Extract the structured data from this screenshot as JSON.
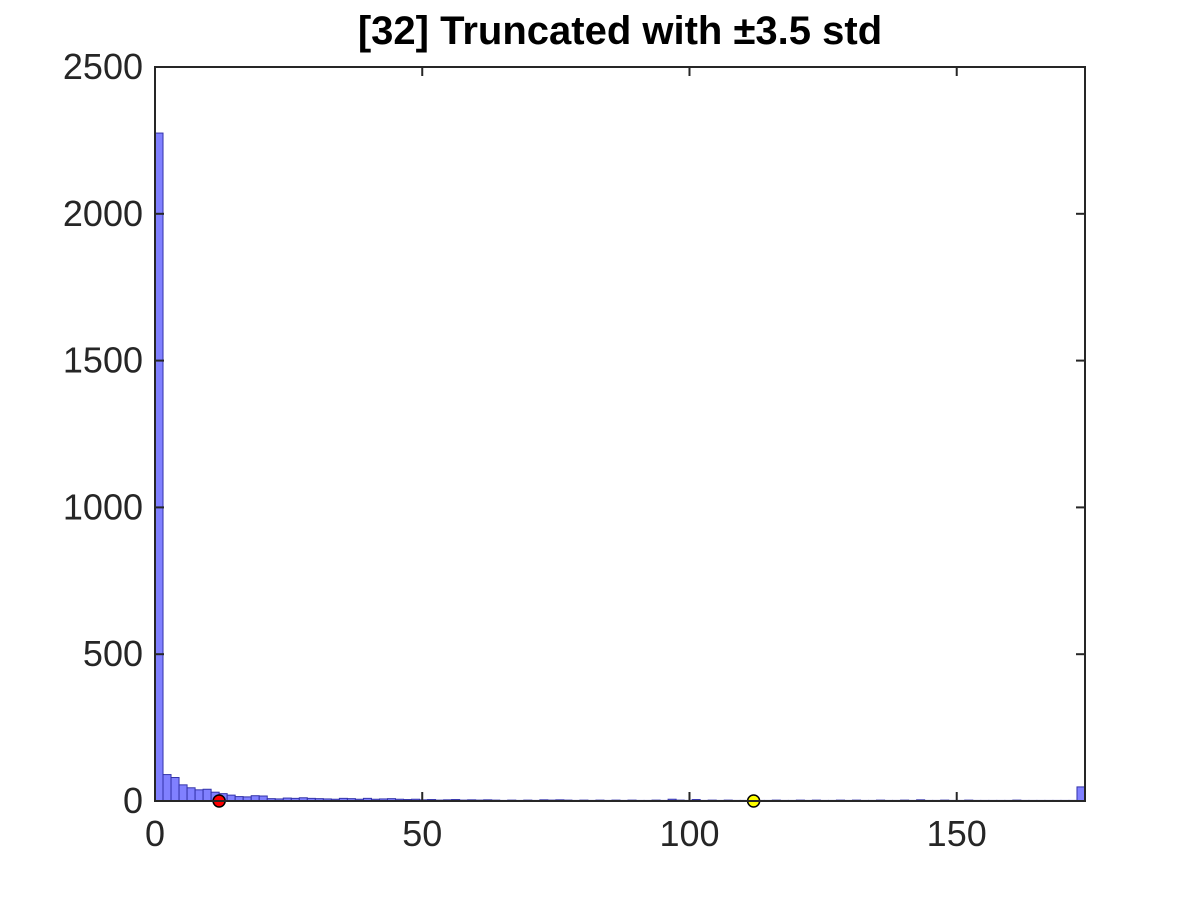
{
  "chart_data": {
    "type": "bar",
    "title": "[32] Truncated with ±3.5 std",
    "xlabel": "",
    "ylabel": "",
    "xlim": [
      0,
      174
    ],
    "ylim": [
      0,
      2500
    ],
    "xticks": [
      0,
      50,
      100,
      150
    ],
    "yticks": [
      0,
      500,
      1000,
      1500,
      2000,
      2500
    ],
    "bin_width": 1.5,
    "bar_color": "#8080ff",
    "bar_edge_color": "#3333aa",
    "bins": [
      {
        "x": 0,
        "count": 2275
      },
      {
        "x": 1.5,
        "count": 90
      },
      {
        "x": 3,
        "count": 80
      },
      {
        "x": 4.5,
        "count": 55
      },
      {
        "x": 6,
        "count": 45
      },
      {
        "x": 7.5,
        "count": 38
      },
      {
        "x": 9,
        "count": 40
      },
      {
        "x": 10.5,
        "count": 30
      },
      {
        "x": 12,
        "count": 25
      },
      {
        "x": 13.5,
        "count": 20
      },
      {
        "x": 15,
        "count": 15
      },
      {
        "x": 16.5,
        "count": 14
      },
      {
        "x": 18,
        "count": 18
      },
      {
        "x": 19.5,
        "count": 17
      },
      {
        "x": 21,
        "count": 8
      },
      {
        "x": 22.5,
        "count": 7
      },
      {
        "x": 24,
        "count": 10
      },
      {
        "x": 25.5,
        "count": 9
      },
      {
        "x": 27,
        "count": 11
      },
      {
        "x": 28.5,
        "count": 9
      },
      {
        "x": 30,
        "count": 8
      },
      {
        "x": 31.5,
        "count": 7
      },
      {
        "x": 33,
        "count": 6
      },
      {
        "x": 34.5,
        "count": 9
      },
      {
        "x": 36,
        "count": 8
      },
      {
        "x": 37.5,
        "count": 6
      },
      {
        "x": 39,
        "count": 9
      },
      {
        "x": 40.5,
        "count": 6
      },
      {
        "x": 42,
        "count": 7
      },
      {
        "x": 43.5,
        "count": 8
      },
      {
        "x": 45,
        "count": 6
      },
      {
        "x": 46.5,
        "count": 5
      },
      {
        "x": 48,
        "count": 6
      },
      {
        "x": 49.5,
        "count": 4
      },
      {
        "x": 51,
        "count": 5
      },
      {
        "x": 52.5,
        "count": 3
      },
      {
        "x": 54,
        "count": 4
      },
      {
        "x": 55.5,
        "count": 5
      },
      {
        "x": 57,
        "count": 3
      },
      {
        "x": 58.5,
        "count": 4
      },
      {
        "x": 60,
        "count": 3
      },
      {
        "x": 61.5,
        "count": 4
      },
      {
        "x": 63,
        "count": 3
      },
      {
        "x": 64.5,
        "count": 2
      },
      {
        "x": 66,
        "count": 3
      },
      {
        "x": 67.5,
        "count": 2
      },
      {
        "x": 69,
        "count": 3
      },
      {
        "x": 70.5,
        "count": 2
      },
      {
        "x": 72,
        "count": 4
      },
      {
        "x": 73.5,
        "count": 3
      },
      {
        "x": 75,
        "count": 4
      },
      {
        "x": 76.5,
        "count": 3
      },
      {
        "x": 78,
        "count": 2
      },
      {
        "x": 79.5,
        "count": 3
      },
      {
        "x": 81,
        "count": 2
      },
      {
        "x": 82.5,
        "count": 3
      },
      {
        "x": 84,
        "count": 2
      },
      {
        "x": 85.5,
        "count": 3
      },
      {
        "x": 87,
        "count": 2
      },
      {
        "x": 88.5,
        "count": 3
      },
      {
        "x": 90,
        "count": 2
      },
      {
        "x": 91.5,
        "count": 2
      },
      {
        "x": 93,
        "count": 3
      },
      {
        "x": 94.5,
        "count": 2
      },
      {
        "x": 96,
        "count": 6
      },
      {
        "x": 97.5,
        "count": 3
      },
      {
        "x": 99,
        "count": 2
      },
      {
        "x": 100.5,
        "count": 5
      },
      {
        "x": 102,
        "count": 2
      },
      {
        "x": 103.5,
        "count": 3
      },
      {
        "x": 105,
        "count": 2
      },
      {
        "x": 106.5,
        "count": 3
      },
      {
        "x": 108,
        "count": 2
      },
      {
        "x": 109.5,
        "count": 2
      },
      {
        "x": 111,
        "count": 3
      },
      {
        "x": 112.5,
        "count": 2
      },
      {
        "x": 114,
        "count": 2
      },
      {
        "x": 115.5,
        "count": 3
      },
      {
        "x": 117,
        "count": 2
      },
      {
        "x": 118.5,
        "count": 2
      },
      {
        "x": 120,
        "count": 3
      },
      {
        "x": 121.5,
        "count": 2
      },
      {
        "x": 123,
        "count": 3
      },
      {
        "x": 124.5,
        "count": 2
      },
      {
        "x": 126,
        "count": 2
      },
      {
        "x": 127.5,
        "count": 3
      },
      {
        "x": 129,
        "count": 2
      },
      {
        "x": 130.5,
        "count": 3
      },
      {
        "x": 132,
        "count": 2
      },
      {
        "x": 133.5,
        "count": 2
      },
      {
        "x": 135,
        "count": 3
      },
      {
        "x": 136.5,
        "count": 2
      },
      {
        "x": 138,
        "count": 2
      },
      {
        "x": 139.5,
        "count": 3
      },
      {
        "x": 141,
        "count": 2
      },
      {
        "x": 142.5,
        "count": 4
      },
      {
        "x": 144,
        "count": 2
      },
      {
        "x": 145.5,
        "count": 2
      },
      {
        "x": 147,
        "count": 3
      },
      {
        "x": 148.5,
        "count": 2
      },
      {
        "x": 150,
        "count": 2
      },
      {
        "x": 151.5,
        "count": 3
      },
      {
        "x": 153,
        "count": 2
      },
      {
        "x": 154.5,
        "count": 2
      },
      {
        "x": 156,
        "count": 2
      },
      {
        "x": 157.5,
        "count": 2
      },
      {
        "x": 159,
        "count": 2
      },
      {
        "x": 160.5,
        "count": 3
      },
      {
        "x": 162,
        "count": 2
      },
      {
        "x": 163.5,
        "count": 2
      },
      {
        "x": 165,
        "count": 2
      },
      {
        "x": 166.5,
        "count": 2
      },
      {
        "x": 168,
        "count": 2
      },
      {
        "x": 169.5,
        "count": 2
      },
      {
        "x": 171,
        "count": 2
      },
      {
        "x": 172.5,
        "count": 48
      }
    ],
    "markers": [
      {
        "x": 12,
        "y": 0,
        "color": "#ff0000"
      },
      {
        "x": 112,
        "y": 0,
        "color": "#ffff00"
      }
    ],
    "grid": false,
    "legend": "none"
  }
}
